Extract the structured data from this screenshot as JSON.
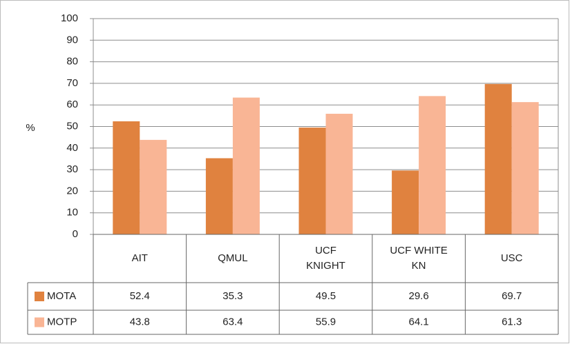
{
  "chart_data": {
    "type": "bar",
    "y_label": "%",
    "categories": [
      "AIT",
      "QMUL",
      "UCF KNIGHT",
      "UCF WHITE KN",
      "USC"
    ],
    "series": [
      {
        "name": "MOTA",
        "color": "#e0823f",
        "values": [
          52.4,
          35.3,
          49.5,
          29.6,
          69.7
        ]
      },
      {
        "name": "MOTP",
        "color": "#f9b595",
        "values": [
          43.8,
          63.4,
          55.9,
          64.1,
          61.3
        ]
      }
    ],
    "ylim": [
      0,
      100
    ],
    "yticks": [
      0,
      10,
      20,
      30,
      40,
      50,
      60,
      70,
      80,
      90,
      100
    ],
    "grid": true,
    "data_table": true
  }
}
